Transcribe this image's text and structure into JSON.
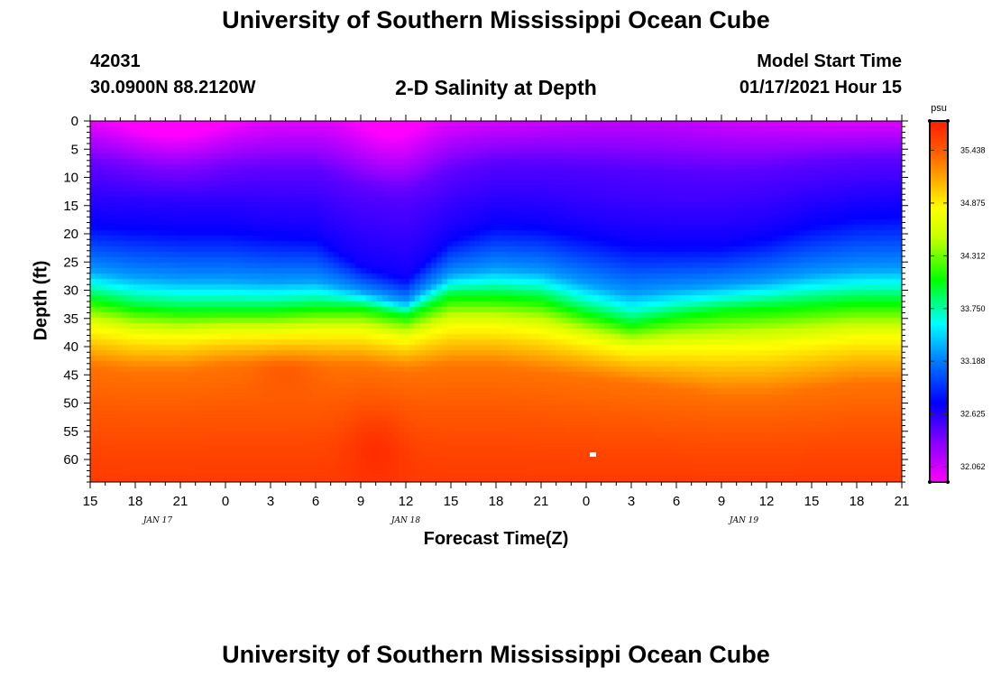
{
  "page": {
    "title": "University of Southern Mississippi Ocean Cube",
    "bottom_title": "University of Southern Mississippi Ocean Cube"
  },
  "header": {
    "station": "42031",
    "coords": "30.0900N 88.2120W",
    "plot_title": "2-D Salinity at Depth",
    "model_label": "Model Start Time",
    "model_time": "01/17/2021 Hour 15"
  },
  "chart_data": {
    "type": "heatmap",
    "title": "2-D Salinity at Depth",
    "xlabel": "Forecast Time(Z)",
    "ylabel": "Depth (ft)",
    "x_ticks": [
      "15",
      "18",
      "21",
      "0",
      "3",
      "6",
      "9",
      "12",
      "15",
      "18",
      "21",
      "0",
      "3",
      "6",
      "9",
      "12",
      "15",
      "18",
      "21"
    ],
    "x_range_hours": [
      0,
      54
    ],
    "date_labels": [
      {
        "label": "JAN 17",
        "hour": 4.5
      },
      {
        "label": "JAN 18",
        "hour": 21
      },
      {
        "label": "JAN 19",
        "hour": 43.5
      }
    ],
    "y_ticks": [
      "0",
      "5",
      "10",
      "15",
      "20",
      "25",
      "30",
      "35",
      "40",
      "45",
      "50",
      "55",
      "60"
    ],
    "ylim": [
      0,
      64
    ],
    "colorbar": {
      "unit": "psu",
      "tick_labels": [
        "35.438",
        "34.875",
        "34.312",
        "33.750",
        "33.188",
        "32.625",
        "32.062"
      ],
      "range": [
        31.9,
        35.75
      ]
    },
    "isohaline_depths_ft": {
      "hours": [
        0,
        3,
        6,
        9,
        12,
        15,
        18,
        21,
        24,
        27,
        30,
        33,
        36,
        39,
        42,
        45,
        48,
        51,
        54
      ],
      "s32_7": [
        17,
        17.5,
        18,
        18,
        19,
        19.5,
        25,
        27.5,
        20,
        17,
        17.5,
        19,
        20.5,
        21,
        21,
        19.5,
        17,
        15.5,
        15
      ],
      "s34_0": [
        31.5,
        33,
        33.5,
        33.5,
        33.5,
        33,
        33,
        34.5,
        31,
        31,
        31.5,
        34,
        36,
        34.5,
        33.5,
        33,
        32.5,
        32,
        32
      ],
      "s35_3": [
        43,
        44,
        44,
        43,
        43,
        43,
        43,
        44,
        43,
        43,
        44,
        45,
        46,
        47,
        48,
        48,
        47,
        46,
        46
      ]
    },
    "salinity_profile": {
      "depths_ft": [
        0,
        8,
        20,
        30,
        36,
        42,
        50,
        60,
        64
      ],
      "psu": [
        32.0,
        32.45,
        32.75,
        33.3,
        34.0,
        34.8,
        35.35,
        35.55,
        35.6
      ]
    }
  }
}
